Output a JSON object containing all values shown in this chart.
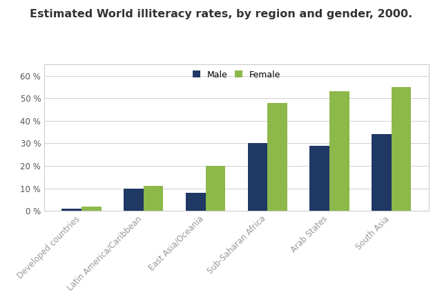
{
  "title": "Estimated World illiteracy rates, by region and gender, 2000.",
  "categories": [
    "Developed countries",
    "Latin America/Caribbean",
    "East Asia/Oceania",
    "Sub-Saharan Africa",
    "Arab States",
    "South Asia"
  ],
  "male_values": [
    1,
    10,
    8,
    30,
    29,
    34
  ],
  "female_values": [
    2,
    11,
    20,
    48,
    53,
    55
  ],
  "male_color": "#1f3864",
  "female_color": "#8db84a",
  "ylim": [
    0,
    65
  ],
  "yticks": [
    0,
    10,
    20,
    30,
    40,
    50,
    60
  ],
  "bar_width": 0.32,
  "legend_labels": [
    "Male",
    "Female"
  ],
  "background_color": "#ffffff",
  "plot_bg_color": "#ffffff",
  "grid_color": "#d0d0d0",
  "title_fontsize": 11.5,
  "tick_fontsize": 8.5,
  "legend_fontsize": 9,
  "xtick_color": "#999999",
  "ytick_color": "#555555",
  "border_color": "#cccccc"
}
